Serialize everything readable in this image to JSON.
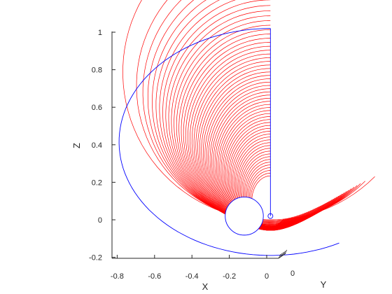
{
  "chart_data": {
    "type": "line",
    "title": "",
    "view": "3d",
    "xlabel": "X",
    "ylabel": "Y",
    "zlabel": "Z",
    "x_ticks": [
      "-0.8",
      "-0.6",
      "-0.4",
      "-0.2",
      "0"
    ],
    "y_ticks": [
      "0"
    ],
    "z_ticks": [
      "-0.2",
      "0",
      "0.2",
      "0.4",
      "0.6",
      "0.8",
      "1"
    ],
    "xlim": [
      -0.8,
      0.0
    ],
    "zlim": [
      -0.2,
      1.0
    ],
    "grid": false,
    "series": [
      {
        "style": "field lines",
        "color": "#ff0000",
        "count": 60,
        "origin_x": 0.02,
        "origin_z": 1.02,
        "end_radius_max": 0.79,
        "end_radius_min": 0.1,
        "end_angle_deg": 270
      },
      {
        "style": "outer boundary",
        "color": "#0000ff",
        "top": [
          0.02,
          1.02
        ],
        "leftmost_x": -0.79,
        "bottom": [
          -0.25,
          -0.19
        ]
      },
      {
        "style": "inner circle",
        "color": "#0000ff",
        "center": [
          -0.12,
          0.02
        ],
        "radius": 0.12
      },
      {
        "style": "marker",
        "shape": "open circle",
        "color": "#0000ff",
        "point": [
          0.02,
          0.02
        ]
      }
    ]
  }
}
